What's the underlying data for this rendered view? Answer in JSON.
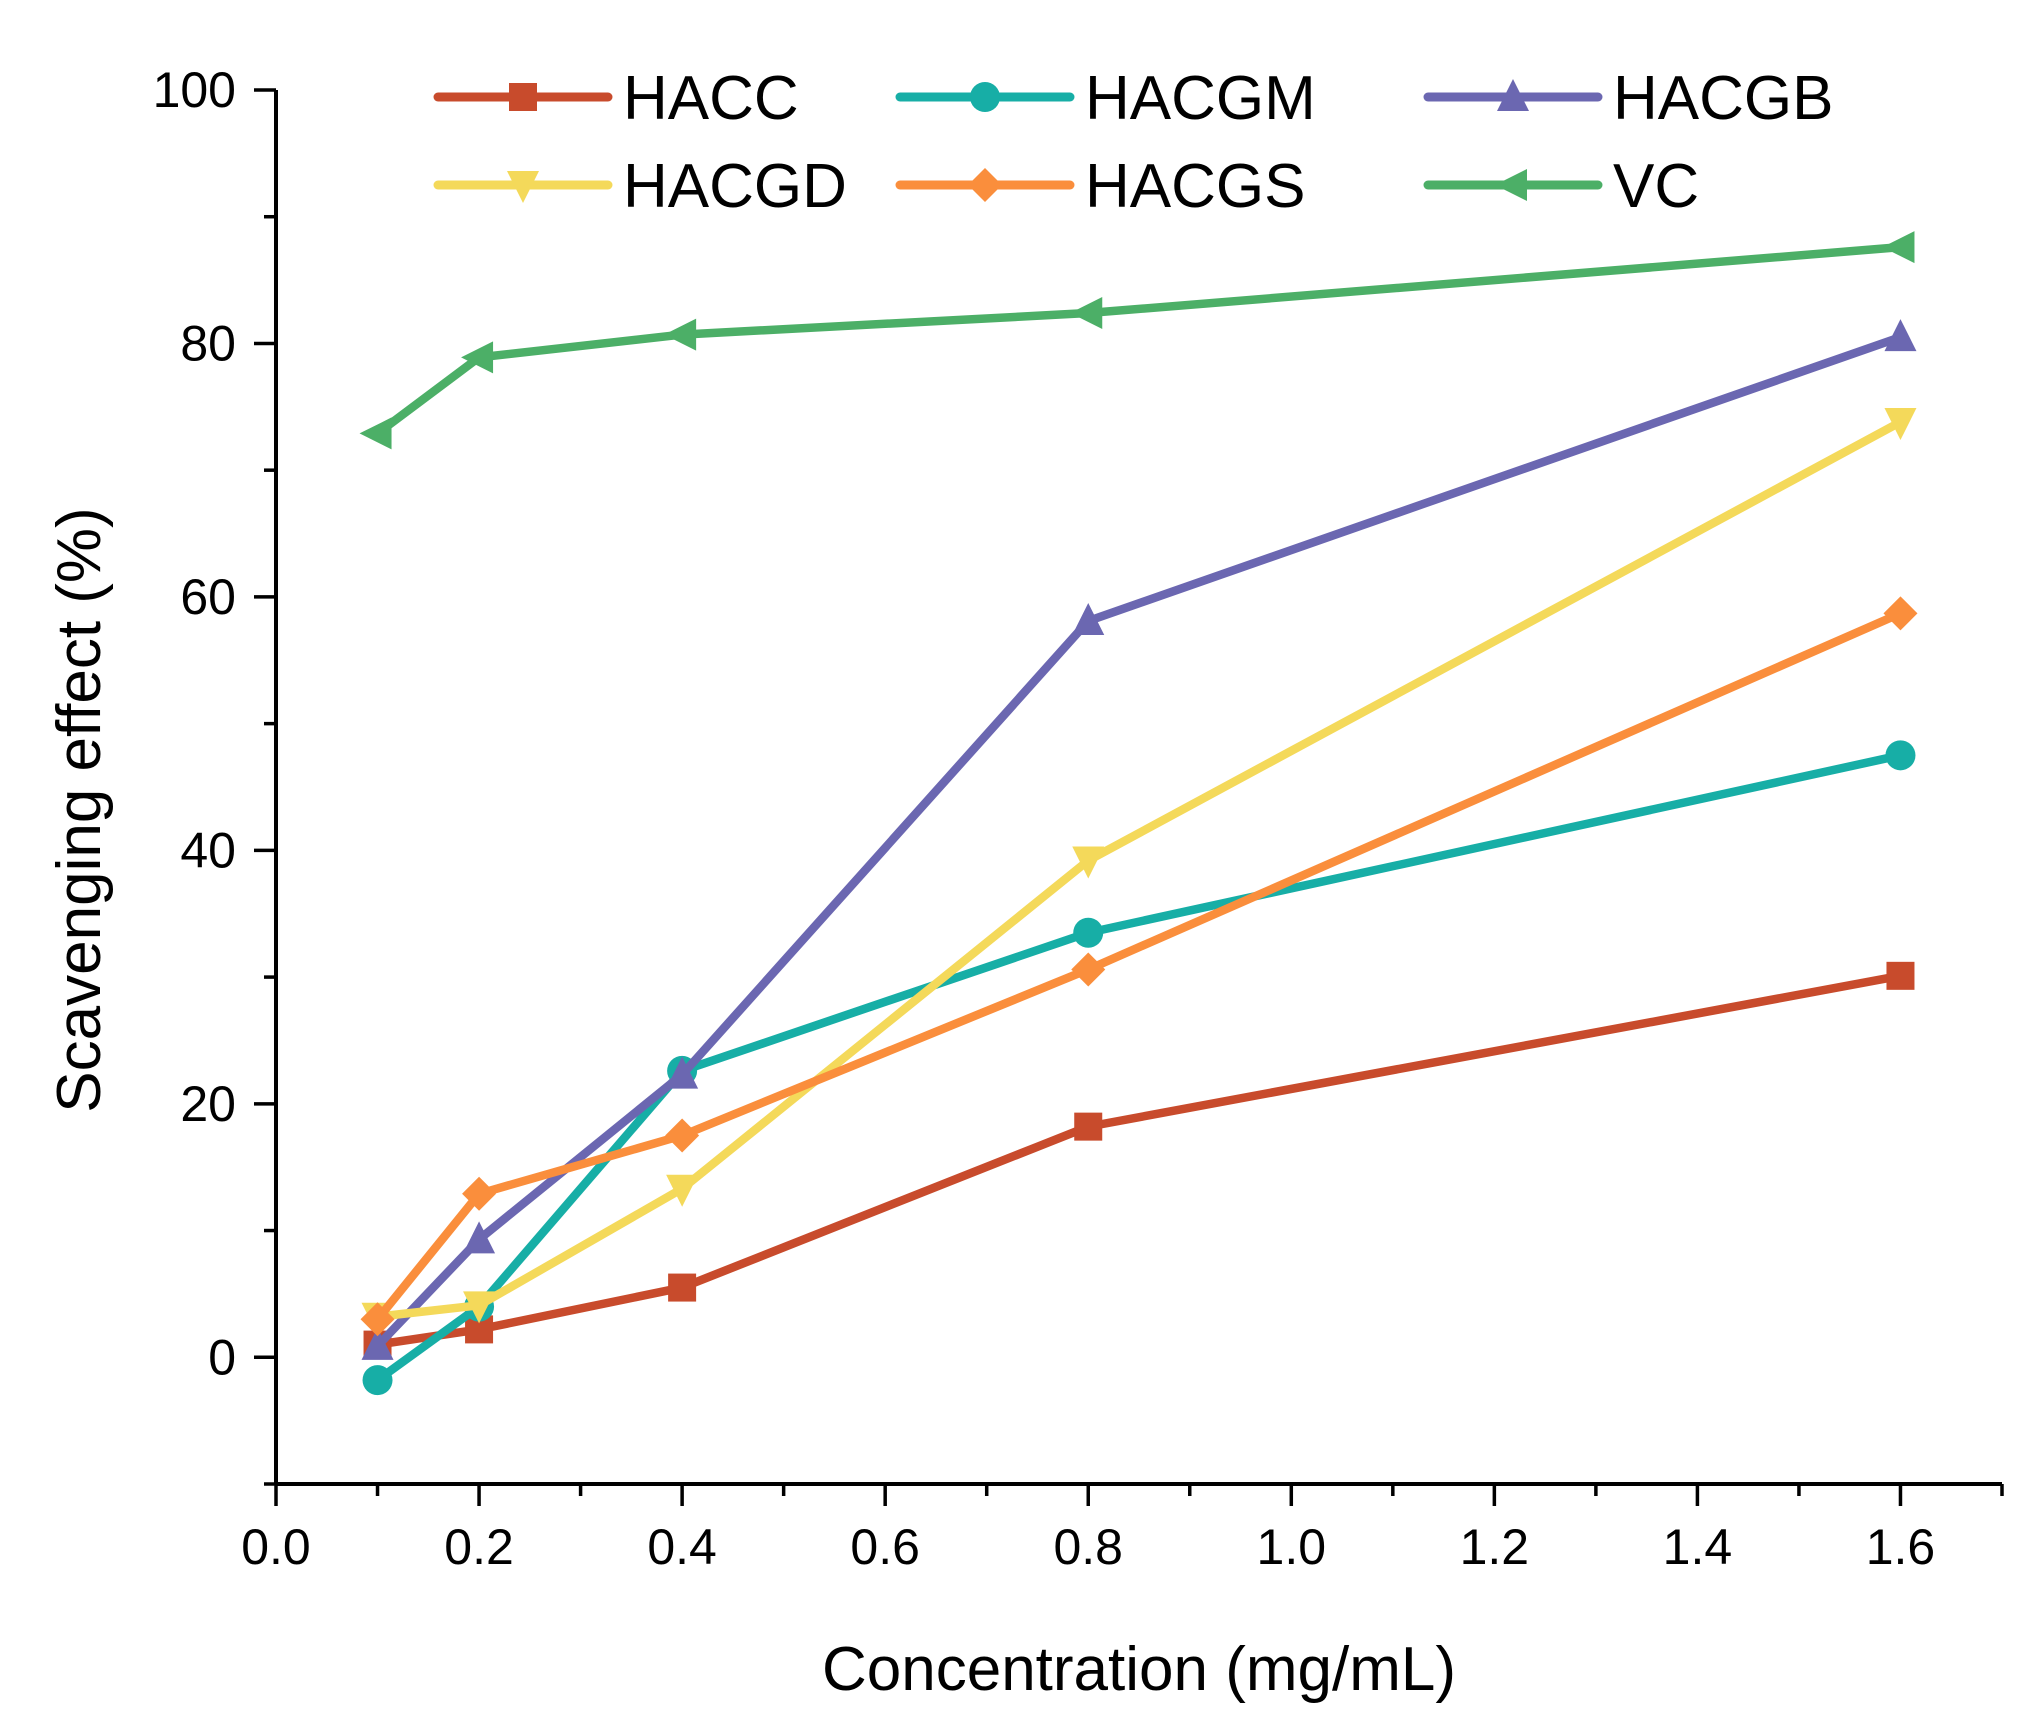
{
  "chart_data": {
    "type": "line",
    "title": "",
    "xlabel": "Concentration (mg/mL)",
    "ylabel": "Scavenging effect (%)",
    "xlim": [
      0.0,
      1.7
    ],
    "ylim": [
      -10,
      100
    ],
    "xticks": [
      0.0,
      0.2,
      0.4,
      0.6,
      0.8,
      1.0,
      1.2,
      1.4,
      1.6
    ],
    "xtick_labels": [
      "0.0",
      "0.2",
      "0.4",
      "0.6",
      "0.8",
      "1.0",
      "1.2",
      "1.4",
      "1.6"
    ],
    "yticks": [
      0,
      20,
      40,
      60,
      80,
      100
    ],
    "ytick_labels": [
      "0",
      "20",
      "40",
      "60",
      "80",
      "100"
    ],
    "grid": false,
    "legend_position": "top",
    "x": [
      0.1,
      0.2,
      0.4,
      0.8,
      1.6
    ],
    "series": [
      {
        "name": "HACC",
        "color": "#c84b2c",
        "marker": "square",
        "values": [
          1.0,
          2.2,
          5.5,
          18.2,
          30.1
        ]
      },
      {
        "name": "HACGM",
        "color": "#17aea6",
        "marker": "circle",
        "values": [
          -1.8,
          4.0,
          22.6,
          33.5,
          47.5
        ]
      },
      {
        "name": "HACGB",
        "color": "#6b67b1",
        "marker": "triangle-up",
        "values": [
          0.9,
          9.3,
          22.3,
          58.1,
          80.5
        ]
      },
      {
        "name": "HACGD",
        "color": "#f4d95a",
        "marker": "triangle-down",
        "values": [
          3.2,
          4.1,
          13.3,
          39.2,
          73.8
        ]
      },
      {
        "name": "HACGS",
        "color": "#fa8e3c",
        "marker": "diamond",
        "values": [
          3.0,
          12.9,
          17.5,
          30.6,
          58.7
        ]
      },
      {
        "name": "VC",
        "color": "#4caf67",
        "marker": "triangle-left",
        "values": [
          72.9,
          78.9,
          80.7,
          82.4,
          87.6
        ]
      }
    ]
  }
}
